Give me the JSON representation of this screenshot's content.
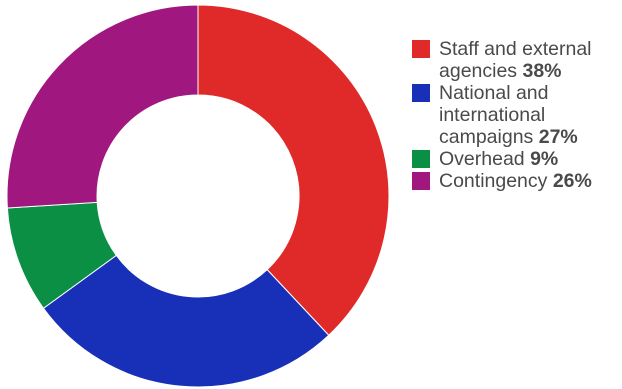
{
  "chart_data": {
    "type": "pie",
    "donut": true,
    "legend_position": "right",
    "slices": [
      {
        "label": "Staff and external agencies",
        "value": 38,
        "value_label": "38%",
        "color": "#e02a2a"
      },
      {
        "label": "National and international campaigns",
        "value": 27,
        "value_label": "27%",
        "color": "#1830b8"
      },
      {
        "label": "Overhead",
        "value": 9,
        "value_label": "9%",
        "color": "#0a8f45"
      },
      {
        "label": "Contingency",
        "value": 26,
        "value_label": "26%",
        "color": "#a0177f"
      }
    ]
  }
}
